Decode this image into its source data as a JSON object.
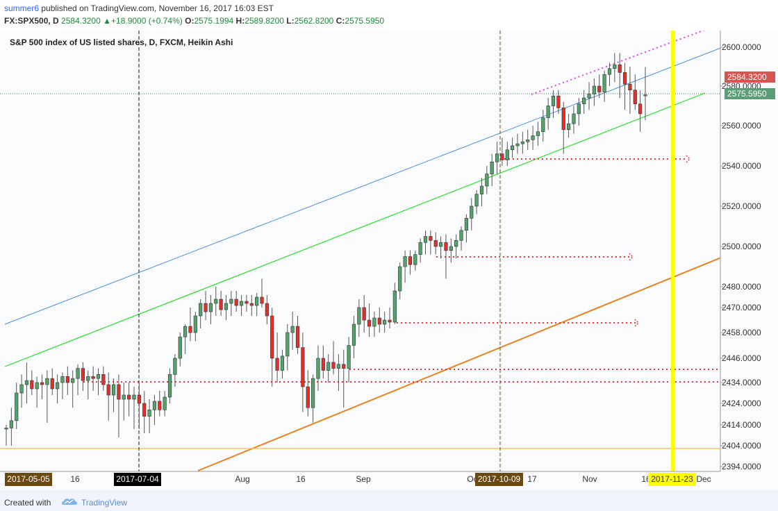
{
  "header": {
    "user": "summer6",
    "published": "published on TradingView.com, November 16, 2017 16:03 EST",
    "symbol": "FX:SPX500, D",
    "last": "2584.3200",
    "change_arrow": "▲",
    "change": "+18.9000 (+0.74%)",
    "o_label": "O:",
    "o": "2575.1994",
    "h_label": "H:",
    "h": "2589.8200",
    "l_label": "L:",
    "l": "2562.8200",
    "c_label": "C:",
    "c": "2575.5950"
  },
  "footer": {
    "created_with": "Created with",
    "brand": "TradingView",
    "logo_icon": "tradingview-cloud-icon"
  },
  "chart_data": {
    "type": "candlestick",
    "title": "S&P 500 index of US listed shares, D, FXCM, Heikin Ashi",
    "ylim": [
      2390,
      2612
    ],
    "y_axis_ticks": [
      "2600.0000",
      "2580.0000",
      "2560.0000",
      "2540.0000",
      "2520.0000",
      "2500.0000",
      "2480.0000",
      "2470.0000",
      "2458.0000",
      "2446.0000",
      "2434.0000",
      "2424.0000",
      "2414.0000",
      "2404.0000",
      "2394.0000"
    ],
    "x_axis_ticks": [
      "16",
      "Aug",
      "16",
      "Sep",
      "Oc",
      "17",
      "Nov",
      "16",
      "Dec"
    ],
    "price_badges": [
      {
        "value": "2584.3200",
        "color": "#d9534f"
      },
      {
        "value": "2575.5950",
        "color": "#5a9e75"
      }
    ],
    "date_markers": [
      {
        "label": "2017-05-05",
        "style": "brown"
      },
      {
        "label": "2017-07-04",
        "style": "black"
      },
      {
        "label": "2017-10-09",
        "style": "brown"
      },
      {
        "label": "2017-11-23",
        "style": "yellow"
      }
    ],
    "colors": {
      "up": "#53a36a",
      "down": "#e0302b",
      "blue_line": "#4a8fd8",
      "green_line": "#2bdb2b",
      "orange_line": "#e8821e",
      "yellow_line": "#ffff00",
      "red_level": "#e53935",
      "magenta": "#e040e0",
      "last_close_line": "#3a7a4a",
      "baseline": "#ffb74d"
    },
    "candles": [
      {
        "o": 2412.0,
        "h": 2414.0,
        "l": 2404.0,
        "c": 2412.5
      },
      {
        "o": 2412.5,
        "h": 2422.0,
        "l": 2404.0,
        "c": 2416.0
      },
      {
        "o": 2416.0,
        "h": 2434.0,
        "l": 2412.0,
        "c": 2429.0
      },
      {
        "o": 2429.0,
        "h": 2438.0,
        "l": 2422.0,
        "c": 2433.0
      },
      {
        "o": 2433.0,
        "h": 2444.0,
        "l": 2424.0,
        "c": 2435.0
      },
      {
        "o": 2435.0,
        "h": 2440.0,
        "l": 2428.0,
        "c": 2431.0
      },
      {
        "o": 2431.0,
        "h": 2437.0,
        "l": 2422.0,
        "c": 2434.0
      },
      {
        "o": 2434.0,
        "h": 2438.0,
        "l": 2426.0,
        "c": 2433.0
      },
      {
        "o": 2433.0,
        "h": 2440.0,
        "l": 2415.0,
        "c": 2436.0
      },
      {
        "o": 2436.0,
        "h": 2441.0,
        "l": 2428.0,
        "c": 2431.0
      },
      {
        "o": 2431.0,
        "h": 2438.0,
        "l": 2424.0,
        "c": 2434.0
      },
      {
        "o": 2434.0,
        "h": 2439.0,
        "l": 2426.0,
        "c": 2437.0
      },
      {
        "o": 2437.0,
        "h": 2442.0,
        "l": 2428.0,
        "c": 2434.0
      },
      {
        "o": 2434.0,
        "h": 2440.0,
        "l": 2422.0,
        "c": 2436.0
      },
      {
        "o": 2436.0,
        "h": 2443.0,
        "l": 2428.0,
        "c": 2441.0
      },
      {
        "o": 2441.0,
        "h": 2444.0,
        "l": 2430.0,
        "c": 2435.0
      },
      {
        "o": 2435.0,
        "h": 2440.0,
        "l": 2426.0,
        "c": 2437.0
      },
      {
        "o": 2437.0,
        "h": 2442.0,
        "l": 2430.0,
        "c": 2436.0
      },
      {
        "o": 2436.0,
        "h": 2441.0,
        "l": 2428.0,
        "c": 2438.0
      },
      {
        "o": 2438.0,
        "h": 2442.0,
        "l": 2430.0,
        "c": 2433.0
      },
      {
        "o": 2433.0,
        "h": 2439.0,
        "l": 2416.0,
        "c": 2428.0
      },
      {
        "o": 2428.0,
        "h": 2436.0,
        "l": 2420.0,
        "c": 2433.0
      },
      {
        "o": 2433.0,
        "h": 2438.0,
        "l": 2408.0,
        "c": 2426.0
      },
      {
        "o": 2426.0,
        "h": 2434.0,
        "l": 2416.0,
        "c": 2428.0
      },
      {
        "o": 2428.0,
        "h": 2434.0,
        "l": 2418.0,
        "c": 2426.0
      },
      {
        "o": 2426.0,
        "h": 2432.0,
        "l": 2412.0,
        "c": 2428.0
      },
      {
        "o": 2428.0,
        "h": 2434.0,
        "l": 2412.0,
        "c": 2424.0
      },
      {
        "o": 2424.0,
        "h": 2430.0,
        "l": 2410.0,
        "c": 2418.0
      },
      {
        "o": 2418.0,
        "h": 2426.0,
        "l": 2410.0,
        "c": 2421.0
      },
      {
        "o": 2421.0,
        "h": 2428.0,
        "l": 2414.0,
        "c": 2425.0
      },
      {
        "o": 2425.0,
        "h": 2430.0,
        "l": 2418.0,
        "c": 2421.0
      },
      {
        "o": 2421.0,
        "h": 2430.0,
        "l": 2418.0,
        "c": 2427.0
      },
      {
        "o": 2427.0,
        "h": 2441.0,
        "l": 2424.0,
        "c": 2438.0
      },
      {
        "o": 2438.0,
        "h": 2448.0,
        "l": 2432.0,
        "c": 2446.0
      },
      {
        "o": 2446.0,
        "h": 2458.0,
        "l": 2442.0,
        "c": 2456.0
      },
      {
        "o": 2456.0,
        "h": 2462.0,
        "l": 2448.0,
        "c": 2461.0
      },
      {
        "o": 2461.0,
        "h": 2470.0,
        "l": 2454.0,
        "c": 2458.0
      },
      {
        "o": 2458.0,
        "h": 2468.0,
        "l": 2454.0,
        "c": 2466.0
      },
      {
        "o": 2466.0,
        "h": 2474.0,
        "l": 2460.0,
        "c": 2472.0
      },
      {
        "o": 2472.0,
        "h": 2478.0,
        "l": 2464.0,
        "c": 2468.0
      },
      {
        "o": 2468.0,
        "h": 2476.0,
        "l": 2462.0,
        "c": 2472.0
      },
      {
        "o": 2472.0,
        "h": 2480.0,
        "l": 2466.0,
        "c": 2474.0
      },
      {
        "o": 2474.0,
        "h": 2478.0,
        "l": 2466.0,
        "c": 2469.0
      },
      {
        "o": 2469.0,
        "h": 2476.0,
        "l": 2464.0,
        "c": 2472.0
      },
      {
        "o": 2472.0,
        "h": 2478.0,
        "l": 2466.0,
        "c": 2474.0
      },
      {
        "o": 2474.0,
        "h": 2478.0,
        "l": 2468.0,
        "c": 2471.0
      },
      {
        "o": 2471.0,
        "h": 2476.0,
        "l": 2466.0,
        "c": 2473.0
      },
      {
        "o": 2473.0,
        "h": 2476.0,
        "l": 2468.0,
        "c": 2472.0
      },
      {
        "o": 2472.0,
        "h": 2476.0,
        "l": 2466.0,
        "c": 2471.0
      },
      {
        "o": 2471.0,
        "h": 2477.0,
        "l": 2466.0,
        "c": 2475.0
      },
      {
        "o": 2475.0,
        "h": 2484.0,
        "l": 2470.0,
        "c": 2472.0
      },
      {
        "o": 2472.0,
        "h": 2476.0,
        "l": 2462.0,
        "c": 2466.0
      },
      {
        "o": 2466.0,
        "h": 2470.0,
        "l": 2432.0,
        "c": 2446.0
      },
      {
        "o": 2446.0,
        "h": 2458.0,
        "l": 2434.0,
        "c": 2440.0
      },
      {
        "o": 2440.0,
        "h": 2450.0,
        "l": 2436.0,
        "c": 2447.0
      },
      {
        "o": 2447.0,
        "h": 2462.0,
        "l": 2440.0,
        "c": 2458.0
      },
      {
        "o": 2458.0,
        "h": 2468.0,
        "l": 2450.0,
        "c": 2461.0
      },
      {
        "o": 2461.0,
        "h": 2466.0,
        "l": 2448.0,
        "c": 2451.0
      },
      {
        "o": 2451.0,
        "h": 2458.0,
        "l": 2420.0,
        "c": 2432.0
      },
      {
        "o": 2432.0,
        "h": 2440.0,
        "l": 2418.0,
        "c": 2422.0
      },
      {
        "o": 2422.0,
        "h": 2438.0,
        "l": 2415.0,
        "c": 2436.0
      },
      {
        "o": 2436.0,
        "h": 2452.0,
        "l": 2430.0,
        "c": 2446.0
      },
      {
        "o": 2446.0,
        "h": 2452.0,
        "l": 2436.0,
        "c": 2440.0
      },
      {
        "o": 2440.0,
        "h": 2448.0,
        "l": 2434.0,
        "c": 2444.0
      },
      {
        "o": 2444.0,
        "h": 2454.0,
        "l": 2438.0,
        "c": 2441.0
      },
      {
        "o": 2441.0,
        "h": 2448.0,
        "l": 2430.0,
        "c": 2443.0
      },
      {
        "o": 2443.0,
        "h": 2450.0,
        "l": 2422.0,
        "c": 2441.0
      },
      {
        "o": 2441.0,
        "h": 2456.0,
        "l": 2434.0,
        "c": 2452.0
      },
      {
        "o": 2452.0,
        "h": 2466.0,
        "l": 2446.0,
        "c": 2462.0
      },
      {
        "o": 2462.0,
        "h": 2474.0,
        "l": 2456.0,
        "c": 2470.0
      },
      {
        "o": 2470.0,
        "h": 2476.0,
        "l": 2458.0,
        "c": 2464.0
      },
      {
        "o": 2464.0,
        "h": 2472.0,
        "l": 2456.0,
        "c": 2461.0
      },
      {
        "o": 2461.0,
        "h": 2468.0,
        "l": 2456.0,
        "c": 2465.0
      },
      {
        "o": 2465.0,
        "h": 2470.0,
        "l": 2458.0,
        "c": 2462.0
      },
      {
        "o": 2462.0,
        "h": 2468.0,
        "l": 2458.0,
        "c": 2464.0
      },
      {
        "o": 2464.0,
        "h": 2470.0,
        "l": 2460.0,
        "c": 2463.0
      },
      {
        "o": 2463.0,
        "h": 2482.0,
        "l": 2462.0,
        "c": 2478.0
      },
      {
        "o": 2478.0,
        "h": 2492.0,
        "l": 2474.0,
        "c": 2490.0
      },
      {
        "o": 2490.0,
        "h": 2498.0,
        "l": 2482.0,
        "c": 2495.0
      },
      {
        "o": 2495.0,
        "h": 2498.0,
        "l": 2486.0,
        "c": 2491.0
      },
      {
        "o": 2491.0,
        "h": 2498.0,
        "l": 2488.0,
        "c": 2496.0
      },
      {
        "o": 2496.0,
        "h": 2504.0,
        "l": 2492.0,
        "c": 2502.0
      },
      {
        "o": 2502.0,
        "h": 2508.0,
        "l": 2496.0,
        "c": 2505.0
      },
      {
        "o": 2505.0,
        "h": 2508.0,
        "l": 2496.0,
        "c": 2503.0
      },
      {
        "o": 2503.0,
        "h": 2507.0,
        "l": 2496.0,
        "c": 2500.0
      },
      {
        "o": 2500.0,
        "h": 2505.0,
        "l": 2494.0,
        "c": 2502.0
      },
      {
        "o": 2502.0,
        "h": 2506.0,
        "l": 2484.0,
        "c": 2498.0
      },
      {
        "o": 2498.0,
        "h": 2504.0,
        "l": 2492.0,
        "c": 2500.0
      },
      {
        "o": 2500.0,
        "h": 2506.0,
        "l": 2494.0,
        "c": 2503.0
      },
      {
        "o": 2503.0,
        "h": 2510.0,
        "l": 2498.0,
        "c": 2508.0
      },
      {
        "o": 2508.0,
        "h": 2516.0,
        "l": 2502.0,
        "c": 2514.0
      },
      {
        "o": 2514.0,
        "h": 2524.0,
        "l": 2508.0,
        "c": 2520.0
      },
      {
        "o": 2520.0,
        "h": 2528.0,
        "l": 2516.0,
        "c": 2526.0
      },
      {
        "o": 2526.0,
        "h": 2534.0,
        "l": 2520.0,
        "c": 2530.0
      },
      {
        "o": 2530.0,
        "h": 2540.0,
        "l": 2526.0,
        "c": 2536.0
      },
      {
        "o": 2536.0,
        "h": 2546.0,
        "l": 2530.0,
        "c": 2542.0
      },
      {
        "o": 2542.0,
        "h": 2552.0,
        "l": 2536.0,
        "c": 2546.0
      },
      {
        "o": 2546.0,
        "h": 2554.0,
        "l": 2540.0,
        "c": 2543.0
      },
      {
        "o": 2543.0,
        "h": 2552.0,
        "l": 2540.0,
        "c": 2548.0
      },
      {
        "o": 2548.0,
        "h": 2554.0,
        "l": 2544.0,
        "c": 2550.0
      },
      {
        "o": 2550.0,
        "h": 2556.0,
        "l": 2546.0,
        "c": 2551.0
      },
      {
        "o": 2551.0,
        "h": 2557.0,
        "l": 2546.0,
        "c": 2552.0
      },
      {
        "o": 2552.0,
        "h": 2558.0,
        "l": 2548.0,
        "c": 2553.0
      },
      {
        "o": 2553.0,
        "h": 2560.0,
        "l": 2548.0,
        "c": 2555.0
      },
      {
        "o": 2555.0,
        "h": 2562.0,
        "l": 2550.0,
        "c": 2557.0
      },
      {
        "o": 2557.0,
        "h": 2568.0,
        "l": 2552.0,
        "c": 2564.0
      },
      {
        "o": 2564.0,
        "h": 2574.0,
        "l": 2558.0,
        "c": 2570.0
      },
      {
        "o": 2570.0,
        "h": 2578.0,
        "l": 2564.0,
        "c": 2575.0
      },
      {
        "o": 2575.0,
        "h": 2578.0,
        "l": 2566.0,
        "c": 2569.0
      },
      {
        "o": 2569.0,
        "h": 2572.0,
        "l": 2546.0,
        "c": 2558.0
      },
      {
        "o": 2558.0,
        "h": 2566.0,
        "l": 2554.0,
        "c": 2561.0
      },
      {
        "o": 2561.0,
        "h": 2570.0,
        "l": 2556.0,
        "c": 2566.0
      },
      {
        "o": 2566.0,
        "h": 2574.0,
        "l": 2560.0,
        "c": 2571.0
      },
      {
        "o": 2571.0,
        "h": 2578.0,
        "l": 2566.0,
        "c": 2574.0
      },
      {
        "o": 2574.0,
        "h": 2582.0,
        "l": 2568.0,
        "c": 2576.0
      },
      {
        "o": 2576.0,
        "h": 2584.0,
        "l": 2570.0,
        "c": 2580.0
      },
      {
        "o": 2580.0,
        "h": 2586.0,
        "l": 2574.0,
        "c": 2577.0
      },
      {
        "o": 2577.0,
        "h": 2588.0,
        "l": 2572.0,
        "c": 2586.0
      },
      {
        "o": 2586.0,
        "h": 2592.0,
        "l": 2580.0,
        "c": 2589.0
      },
      {
        "o": 2589.0,
        "h": 2597.0,
        "l": 2582.0,
        "c": 2591.0
      },
      {
        "o": 2591.0,
        "h": 2597.0,
        "l": 2574.0,
        "c": 2587.0
      },
      {
        "o": 2587.0,
        "h": 2592.0,
        "l": 2568.0,
        "c": 2581.0
      },
      {
        "o": 2581.0,
        "h": 2590.0,
        "l": 2566.0,
        "c": 2578.0
      },
      {
        "o": 2578.0,
        "h": 2586.0,
        "l": 2568.0,
        "c": 2571.0
      },
      {
        "o": 2571.0,
        "h": 2578.0,
        "l": 2557.0,
        "c": 2566.0
      },
      {
        "o": 2575.1994,
        "h": 2589.82,
        "l": 2562.82,
        "c": 2575.595
      }
    ]
  }
}
